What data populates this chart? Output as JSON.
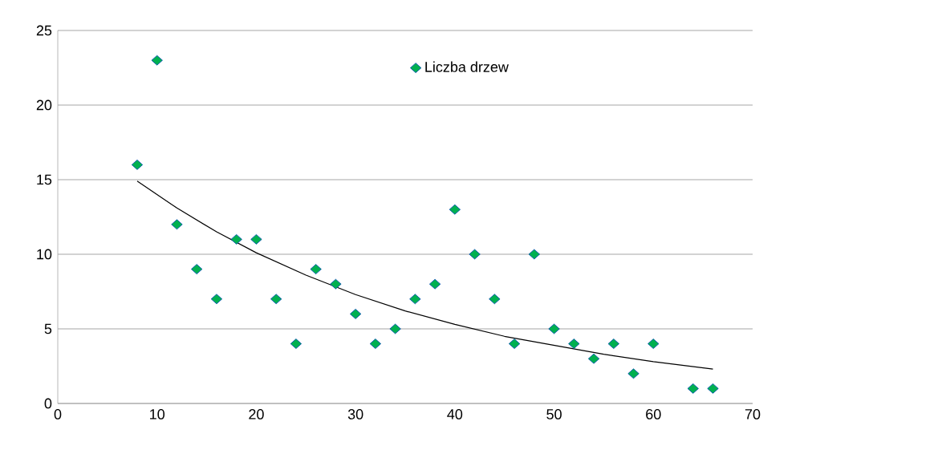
{
  "chart_data": {
    "type": "scatter",
    "x": [
      8,
      10,
      12,
      14,
      16,
      18,
      20,
      22,
      24,
      26,
      28,
      30,
      32,
      34,
      36,
      38,
      40,
      42,
      44,
      46,
      48,
      50,
      52,
      54,
      56,
      58,
      60,
      64,
      66
    ],
    "series": [
      {
        "name": "Liczba drzew",
        "color": "#00b050",
        "marker": "diamond",
        "values": [
          16,
          23,
          12,
          9,
          7,
          11,
          11,
          7,
          4,
          9,
          8,
          6,
          4,
          5,
          7,
          8,
          13,
          10,
          7,
          4,
          10,
          5,
          4,
          3,
          4,
          2,
          4,
          1,
          1
        ]
      },
      {
        "type": "line",
        "color": "#000000",
        "marker": "none",
        "x": [
          8,
          12,
          16,
          20,
          25,
          30,
          35,
          40,
          45,
          50,
          55,
          60,
          66
        ],
        "values": [
          14.9,
          13.1,
          11.5,
          10.1,
          8.6,
          7.3,
          6.2,
          5.3,
          4.5,
          3.9,
          3.3,
          2.8,
          2.3
        ]
      }
    ],
    "xlim": [
      0,
      70
    ],
    "xticks": [
      0,
      10,
      20,
      30,
      40,
      50,
      60,
      70
    ],
    "ylim": [
      0,
      25
    ],
    "yticks": [
      0,
      5,
      10,
      15,
      20,
      25
    ],
    "grid": "y",
    "legend": "top"
  }
}
